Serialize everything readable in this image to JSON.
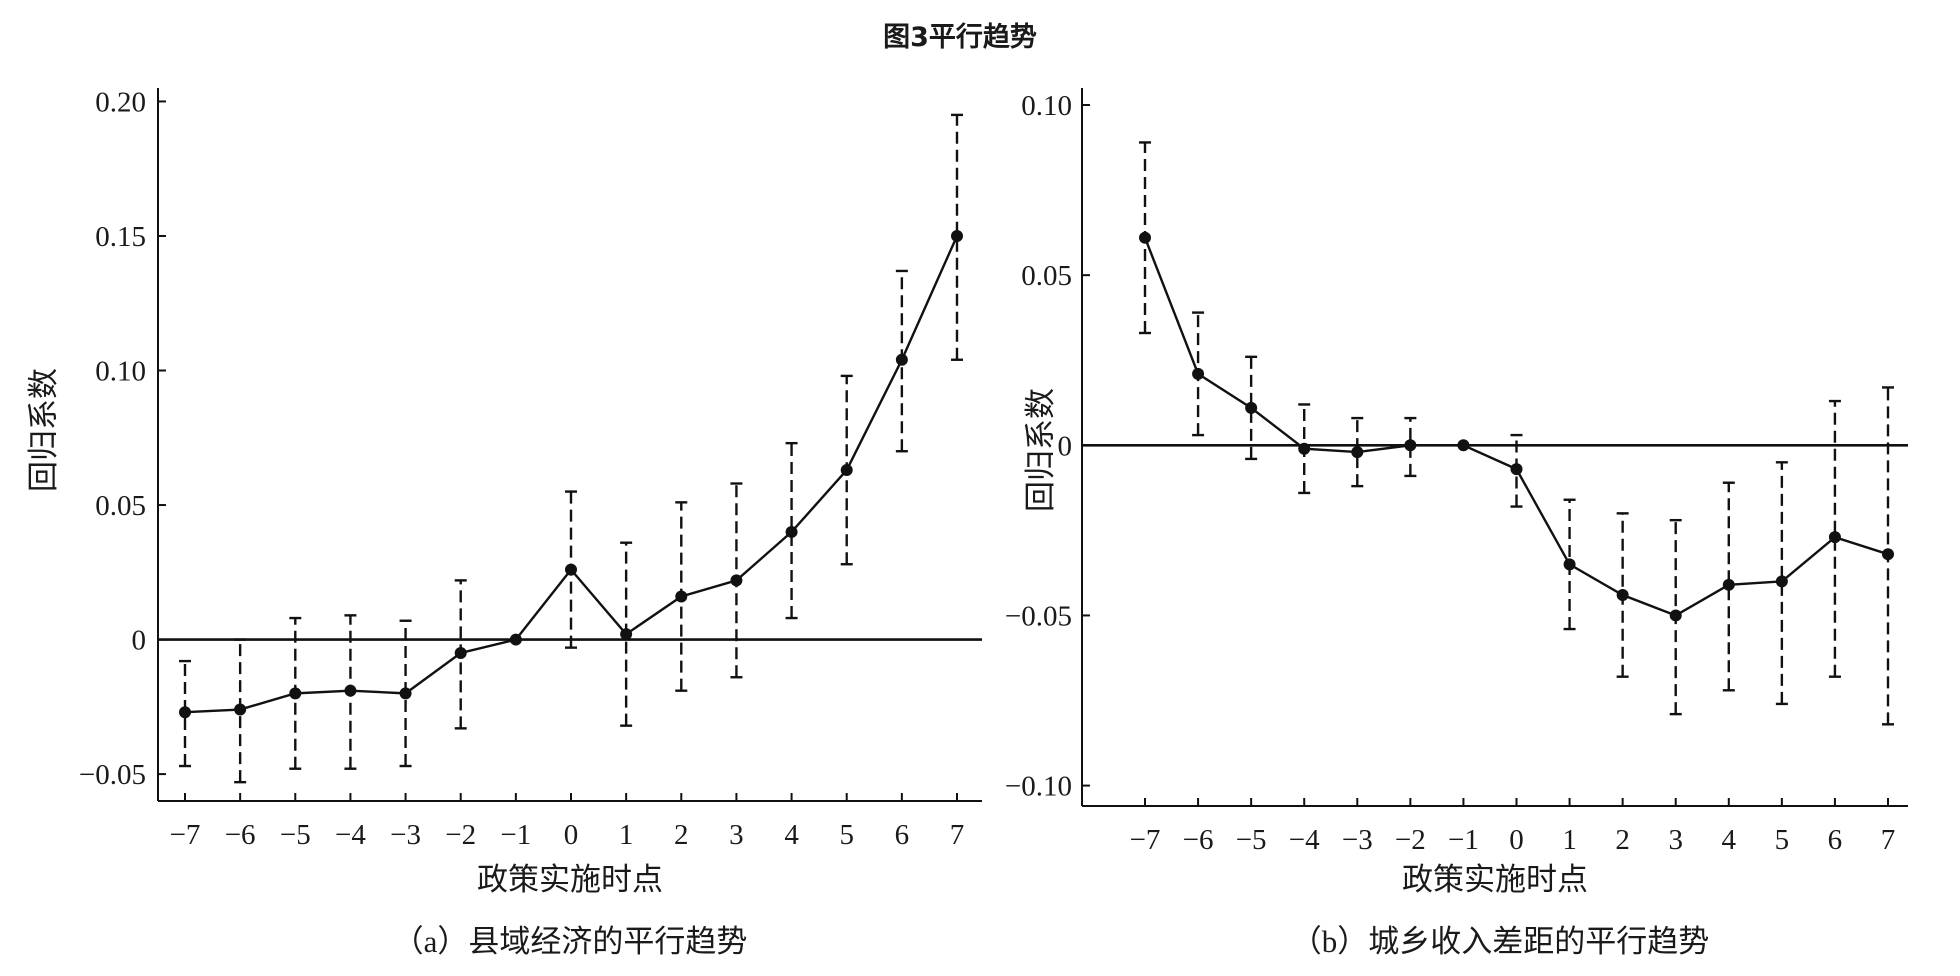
{
  "figure_title": "图3平行趋势",
  "chart_data": [
    {
      "type": "line",
      "panel": "a",
      "caption": "（a）县域经济的平行趋势",
      "xlabel": "政策实施时点",
      "ylabel": "回归系数",
      "x": [
        -7,
        -6,
        -5,
        -4,
        -3,
        -2,
        -1,
        0,
        1,
        2,
        3,
        4,
        5,
        6,
        7
      ],
      "x_tick_labels": [
        "−7",
        "−6",
        "−5",
        "−4",
        "−3",
        "−2",
        "−1",
        "0",
        "1",
        "2",
        "3",
        "4",
        "5",
        "6",
        "7"
      ],
      "y": [
        -0.027,
        -0.026,
        -0.02,
        -0.019,
        -0.02,
        -0.005,
        0.0,
        0.026,
        0.002,
        0.016,
        0.022,
        0.04,
        0.063,
        0.104,
        0.15
      ],
      "ci_low": [
        -0.047,
        -0.053,
        -0.048,
        -0.048,
        -0.047,
        -0.033,
        0.0,
        -0.003,
        -0.032,
        -0.019,
        -0.014,
        0.008,
        0.028,
        0.07,
        0.104
      ],
      "ci_high": [
        -0.008,
        0.0,
        0.008,
        0.009,
        0.007,
        0.022,
        0.0,
        0.055,
        0.036,
        0.051,
        0.058,
        0.073,
        0.098,
        0.137,
        0.195
      ],
      "y_ticks": [
        -0.05,
        0,
        0.05,
        0.1,
        0.15,
        0.2
      ],
      "y_tick_labels": [
        "−0.05",
        "0",
        "0.05",
        "0.10",
        "0.15",
        "0.20"
      ],
      "ylim": [
        -0.06,
        0.205
      ],
      "zero_line": true
    },
    {
      "type": "line",
      "panel": "b",
      "caption": "（b）城乡收入差距的平行趋势",
      "xlabel": "政策实施时点",
      "ylabel": "回归系数",
      "x": [
        -7,
        -6,
        -5,
        -4,
        -3,
        -2,
        -1,
        0,
        1,
        2,
        3,
        4,
        5,
        6,
        7
      ],
      "x_tick_labels": [
        "−7",
        "−6",
        "−5",
        "−4",
        "−3",
        "−2",
        "−1",
        "0",
        "1",
        "2",
        "3",
        "4",
        "5",
        "6",
        "7"
      ],
      "y": [
        0.061,
        0.021,
        0.011,
        -0.001,
        -0.002,
        0.0,
        0.0,
        -0.007,
        -0.035,
        -0.044,
        -0.05,
        -0.041,
        -0.04,
        -0.027,
        -0.032
      ],
      "ci_low": [
        0.033,
        0.003,
        -0.004,
        -0.014,
        -0.012,
        -0.009,
        0.0,
        -0.018,
        -0.054,
        -0.068,
        -0.079,
        -0.072,
        -0.076,
        -0.068,
        -0.082
      ],
      "ci_high": [
        0.089,
        0.039,
        0.026,
        0.012,
        0.008,
        0.008,
        0.0,
        0.003,
        -0.016,
        -0.02,
        -0.022,
        -0.011,
        -0.005,
        0.013,
        0.017
      ],
      "y_ticks": [
        -0.1,
        -0.05,
        0,
        0.05,
        0.1
      ],
      "y_tick_labels": [
        "−0.10",
        "−0.05",
        "0",
        "0.05",
        "0.10"
      ],
      "ylim": [
        -0.106,
        0.105
      ],
      "zero_line": true
    }
  ]
}
